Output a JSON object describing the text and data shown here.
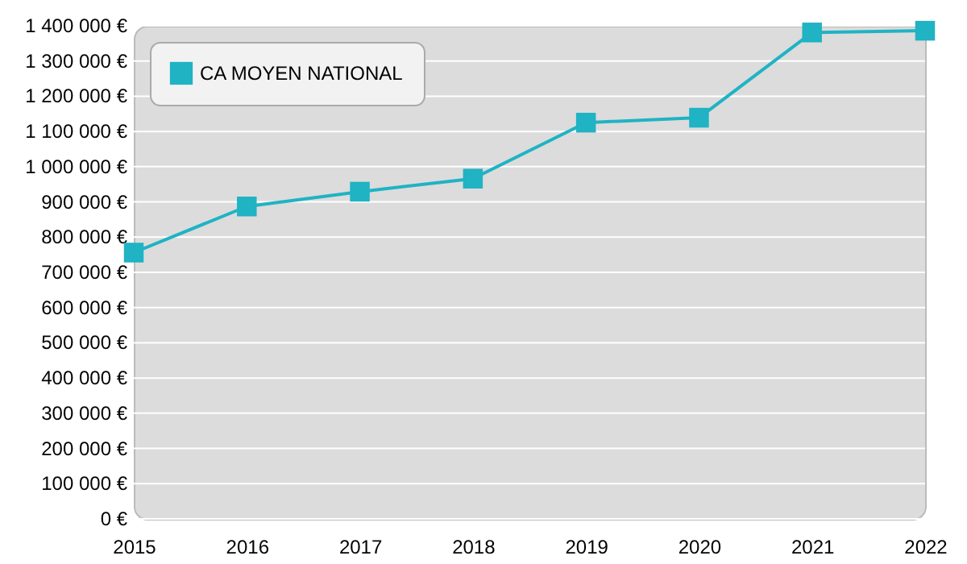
{
  "chart_data": {
    "type": "line",
    "x": [
      2015,
      2016,
      2017,
      2018,
      2019,
      2020,
      2021,
      2022
    ],
    "series": [
      {
        "name": "CA MOYEN NATIONAL",
        "color": "#1fb3c4",
        "values": [
          756000,
          887000,
          929000,
          966000,
          1125000,
          1139000,
          1381000,
          1386000
        ]
      }
    ],
    "xlim": [
      2015,
      2022
    ],
    "xticks": [
      2015,
      2016,
      2017,
      2018,
      2019,
      2020,
      2021,
      2022
    ],
    "ylim": [
      0,
      1400000
    ],
    "yticks": [
      {
        "value": 0,
        "label": "0 €"
      },
      {
        "value": 100000,
        "label": "100 000 €"
      },
      {
        "value": 200000,
        "label": "200 000 €"
      },
      {
        "value": 300000,
        "label": "300 000 €"
      },
      {
        "value": 400000,
        "label": "400 000 €"
      },
      {
        "value": 500000,
        "label": "500 000 €"
      },
      {
        "value": 600000,
        "label": "600 000 €"
      },
      {
        "value": 700000,
        "label": "700 000 €"
      },
      {
        "value": 800000,
        "label": "800 000 €"
      },
      {
        "value": 900000,
        "label": "900 000 €"
      },
      {
        "value": 1000000,
        "label": "1 000 000 €"
      },
      {
        "value": 1100000,
        "label": "1 100 000 €"
      },
      {
        "value": 1200000,
        "label": "1 200 000 €"
      },
      {
        "value": 1300000,
        "label": "1 300 000 €"
      },
      {
        "value": 1400000,
        "label": "1 400 000 €"
      }
    ],
    "grid": "y",
    "legend": "top left",
    "marker": "square",
    "line_style": "solid"
  }
}
